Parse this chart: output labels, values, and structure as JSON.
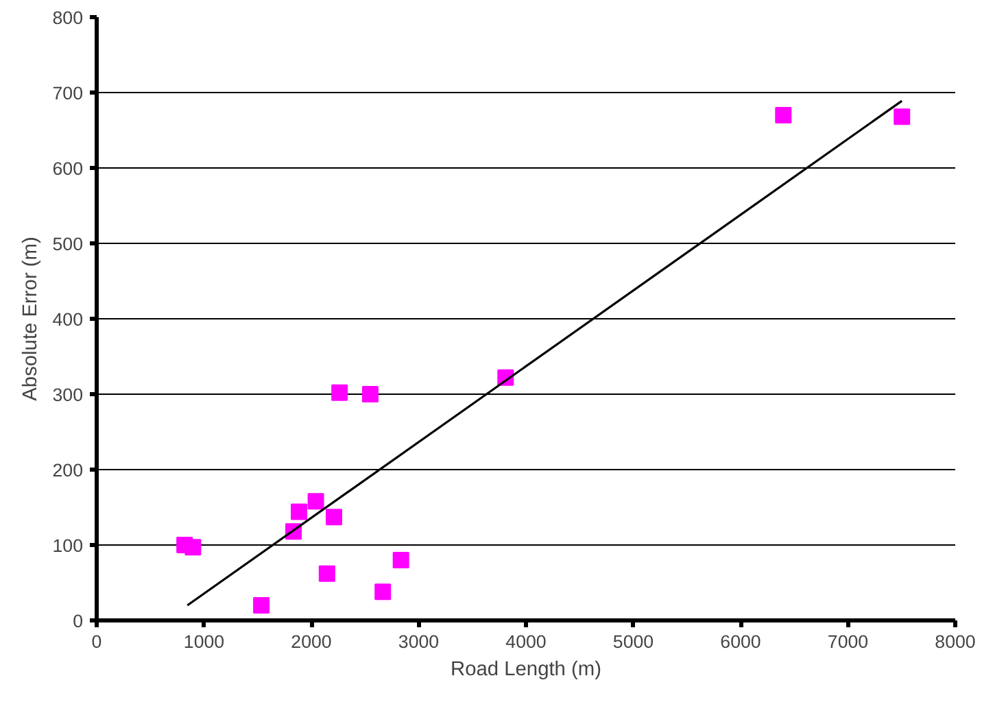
{
  "chart_data": {
    "type": "scatter",
    "xlabel": "Road Length (m)",
    "ylabel": "Absolute Error (m)",
    "xlim": [
      0,
      8000
    ],
    "xticks": [
      0,
      1000,
      2000,
      3000,
      4000,
      5000,
      6000,
      7000,
      8000
    ],
    "ylim": [
      0,
      800
    ],
    "yticks": [
      0,
      100,
      200,
      300,
      400,
      500,
      600,
      700,
      800
    ],
    "grid": "y",
    "series": [
      {
        "marker": "square",
        "color": "#ff00ff",
        "x": [
          819,
          897,
          1534,
          1834,
          1885,
          2042,
          2211,
          2146,
          2263,
          2549,
          2666,
          2835,
          3810,
          6398,
          7503
        ],
        "values": [
          100,
          97,
          20,
          118,
          144,
          158,
          137,
          62,
          302,
          300,
          38,
          80,
          322,
          670,
          668
        ]
      },
      {
        "type": "line",
        "color": "#000000",
        "x": [
          845,
          7503
        ],
        "values": [
          20,
          689
        ]
      }
    ]
  }
}
